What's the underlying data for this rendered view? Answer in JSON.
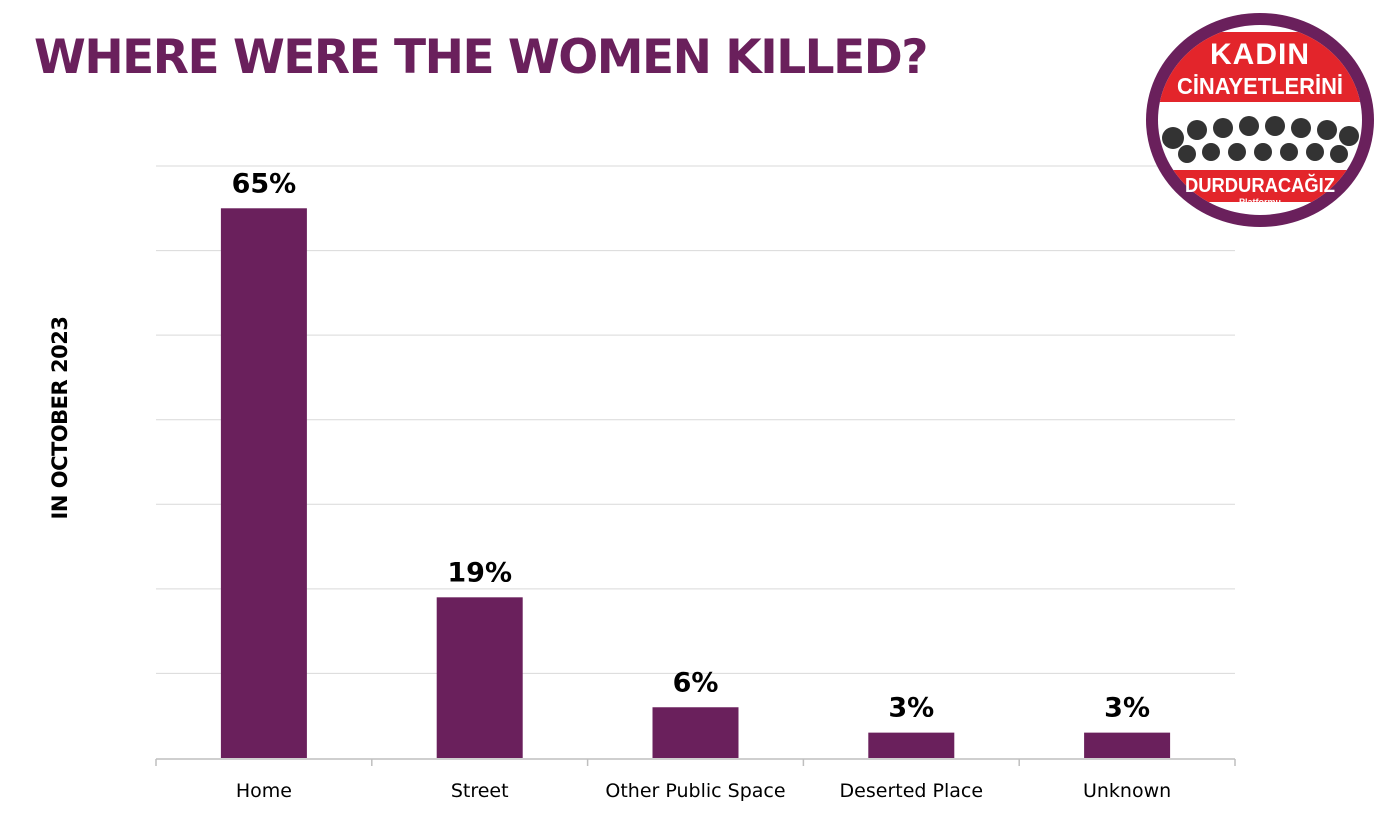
{
  "title": "WHERE WERE THE WOMEN KILLED?",
  "side_label": "IN OCTOBER 2023",
  "logo": {
    "line1": "KADIN",
    "line2": "CİNAYETLERİNİ",
    "line3": "DURDURACAĞIZ",
    "line4": "Platformu",
    "colors": {
      "ring": "#6a205c",
      "band": "#e3252b",
      "text": "#ffffff"
    }
  },
  "colors": {
    "bar": "#6a205c",
    "grid": "#d9d9d9",
    "axis": "#bfbfbf",
    "label": "#000000"
  },
  "chart_data": {
    "type": "bar",
    "categories": [
      "Home",
      "Street",
      "Other Public Space",
      "Deserted Place",
      "Unknown"
    ],
    "values": [
      65,
      19,
      6,
      3,
      3
    ],
    "labels": [
      "65%",
      "19%",
      "6%",
      "3%",
      "3%"
    ],
    "title": "WHERE WERE THE WOMEN KILLED?",
    "xlabel": "",
    "ylabel": "IN OCTOBER 2023",
    "ylim": [
      0,
      70
    ],
    "grid": true,
    "legend": "none"
  }
}
